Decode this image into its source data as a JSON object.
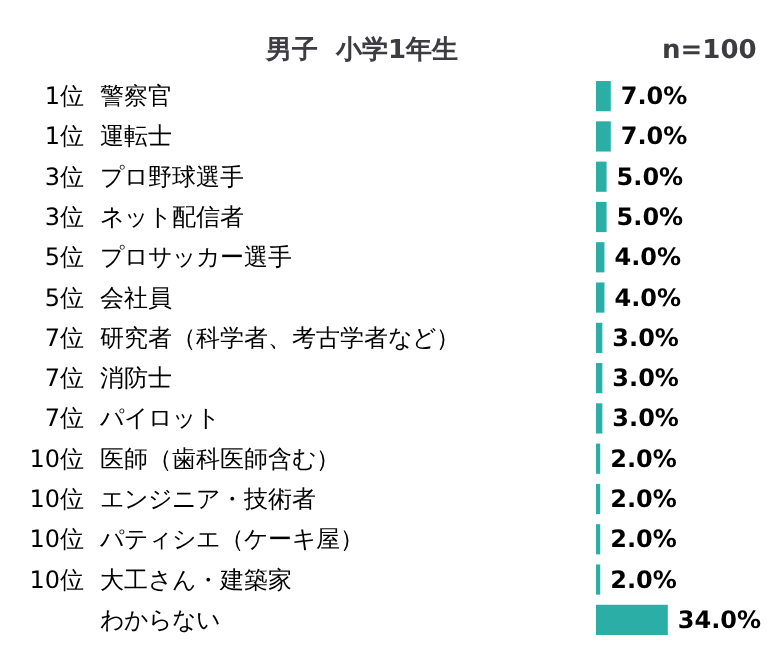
{
  "chart_data": {
    "type": "bar",
    "orientation": "horizontal",
    "title": "男子  小学1年生",
    "subtitle": "n=100",
    "categories": [
      "警察官",
      "運転士",
      "プロ野球選手",
      "ネット配信者",
      "プロサッカー選手",
      "会社員",
      "研究者（科学者、考古学者など）",
      "消防士",
      "パイロット",
      "医師（歯科医師含む）",
      "エンジニア・技術者",
      "パティシエ（ケーキ屋）",
      "大工さん・建築家",
      "わからない"
    ],
    "values": [
      7,
      7,
      5,
      5,
      4,
      4,
      3,
      3,
      3,
      2,
      2,
      2,
      2,
      34
    ],
    "value_labels": [
      "7.0%",
      "7.0%",
      "5.0%",
      "5.0%",
      "4.0%",
      "4.0%",
      "3.0%",
      "3.0%",
      "3.0%",
      "2.0%",
      "2.0%",
      "2.0%",
      "2.0%",
      "34.0%"
    ],
    "color": "#2aaea6",
    "annotations": [
      "1位",
      "1位",
      "3位",
      "3位",
      "5位",
      "5位",
      "7位",
      "7位",
      "7位",
      "10位",
      "10位",
      "10位",
      "10位"
    ]
  }
}
